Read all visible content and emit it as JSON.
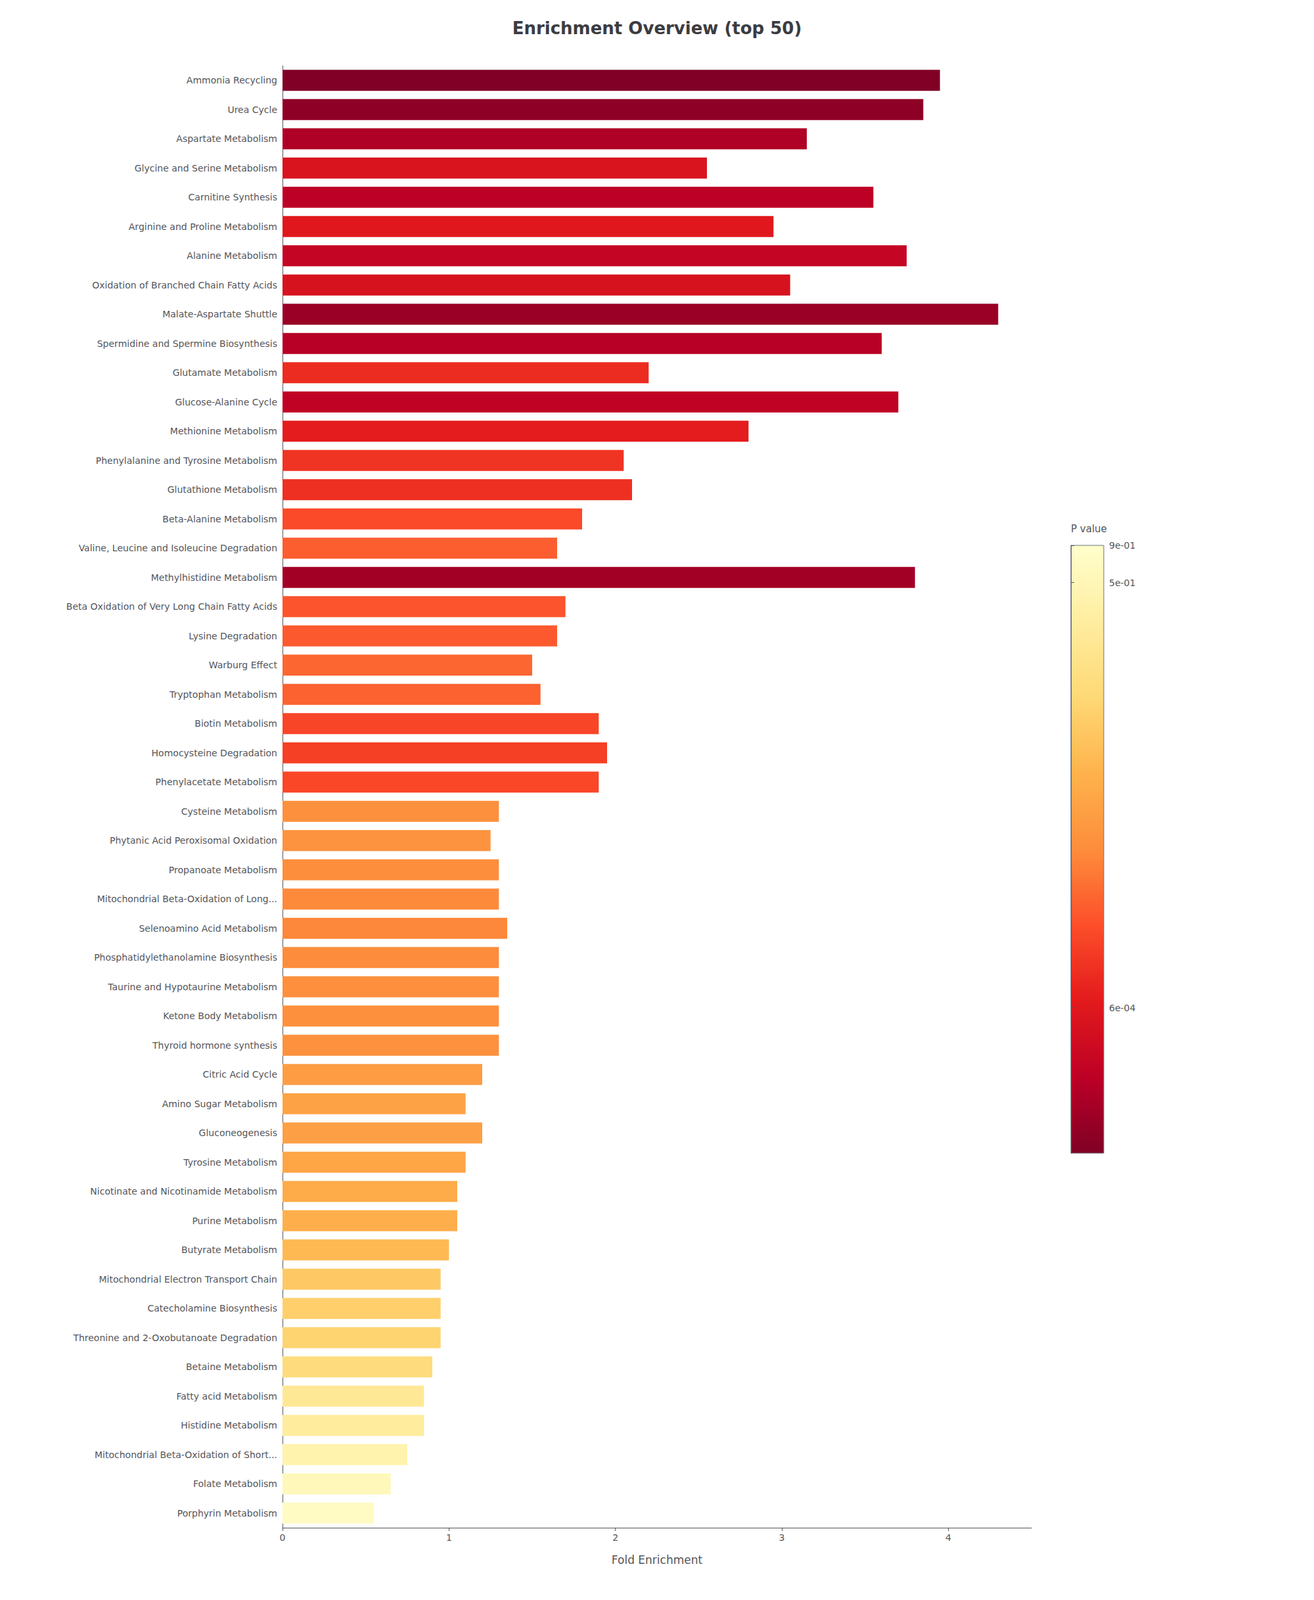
{
  "chart_data": {
    "type": "bar",
    "orientation": "horizontal",
    "title": "Enrichment Overview (top 50)",
    "x_label": "Fold Enrichment",
    "categories": [
      "Ammonia Recycling",
      "Urea Cycle",
      "Aspartate Metabolism",
      "Glycine and Serine Metabolism",
      "Carnitine Synthesis",
      "Arginine and Proline Metabolism",
      "Alanine Metabolism",
      "Oxidation of Branched Chain Fatty Acids",
      "Malate-Aspartate Shuttle",
      "Spermidine and Spermine Biosynthesis",
      "Glutamate Metabolism",
      "Glucose-Alanine Cycle",
      "Methionine Metabolism",
      "Phenylalanine and Tyrosine Metabolism",
      "Glutathione Metabolism",
      "Beta-Alanine Metabolism",
      "Valine, Leucine and Isoleucine Degradation",
      "Methylhistidine Metabolism",
      "Beta Oxidation of Very Long Chain Fatty Acids",
      "Lysine Degradation",
      "Warburg Effect",
      "Tryptophan Metabolism",
      "Biotin Metabolism",
      "Homocysteine Degradation",
      "Phenylacetate Metabolism",
      "Cysteine Metabolism",
      "Phytanic Acid Peroxisomal Oxidation",
      "Propanoate Metabolism",
      "Mitochondrial Beta-Oxidation of Long...",
      "Selenoamino Acid Metabolism",
      "Phosphatidylethanolamine Biosynthesis",
      "Taurine and Hypotaurine Metabolism",
      "Ketone Body Metabolism",
      "Thyroid hormone synthesis",
      "Citric Acid Cycle",
      "Amino Sugar Metabolism",
      "Gluconeogenesis",
      "Tyrosine Metabolism",
      "Nicotinate and Nicotinamide Metabolism",
      "Purine Metabolism",
      "Butyrate Metabolism",
      "Mitochondrial Electron Transport Chain",
      "Catecholamine Biosynthesis",
      "Threonine and 2-Oxobutanoate Degradation",
      "Betaine Metabolism",
      "Fatty acid Metabolism",
      "Histidine Metabolism",
      "Mitochondrial Beta-Oxidation of Short...",
      "Folate Metabolism",
      "Porphyrin Metabolism"
    ],
    "values": [
      3.95,
      3.85,
      3.15,
      2.55,
      3.55,
      2.95,
      3.75,
      3.05,
      4.3,
      3.6,
      2.2,
      3.7,
      2.8,
      2.05,
      2.1,
      1.8,
      1.65,
      3.8,
      1.7,
      1.65,
      1.5,
      1.55,
      1.9,
      1.95,
      1.9,
      1.3,
      1.25,
      1.3,
      1.3,
      1.35,
      1.3,
      1.3,
      1.3,
      1.3,
      1.2,
      1.1,
      1.2,
      1.1,
      1.05,
      1.05,
      1.0,
      0.95,
      0.95,
      0.95,
      0.9,
      0.85,
      0.85,
      0.75,
      0.65,
      0.55
    ],
    "pvalues": [
      6e-05,
      8e-05,
      0.00015,
      0.0005,
      0.0002,
      0.0006,
      0.00025,
      0.00045,
      0.0001,
      0.00018,
      0.001,
      0.00022,
      0.0007,
      0.0012,
      0.0011,
      0.002,
      0.003,
      0.00012,
      0.0025,
      0.0028,
      0.0035,
      0.0032,
      0.0018,
      0.0016,
      0.0019,
      0.008,
      0.009,
      0.0075,
      0.007,
      0.0065,
      0.0072,
      0.0078,
      0.0082,
      0.0085,
      0.012,
      0.015,
      0.013,
      0.016,
      0.02,
      0.022,
      0.03,
      0.05,
      0.06,
      0.07,
      0.1,
      0.2,
      0.25,
      0.4,
      0.55,
      0.7
    ],
    "xlim": [
      0,
      4.5
    ],
    "xticks": [
      0,
      1,
      2,
      3,
      4
    ],
    "grid": false,
    "colorbar_label": "P value",
    "colorbar_range": [
      6e-05,
      0.9
    ],
    "colorbar_ticks": [
      {
        "value": 0.0006,
        "label": "6e-04"
      },
      {
        "value": 0.5,
        "label": "5e-01"
      },
      {
        "value": 0.9,
        "label": "9e-01"
      }
    ]
  }
}
